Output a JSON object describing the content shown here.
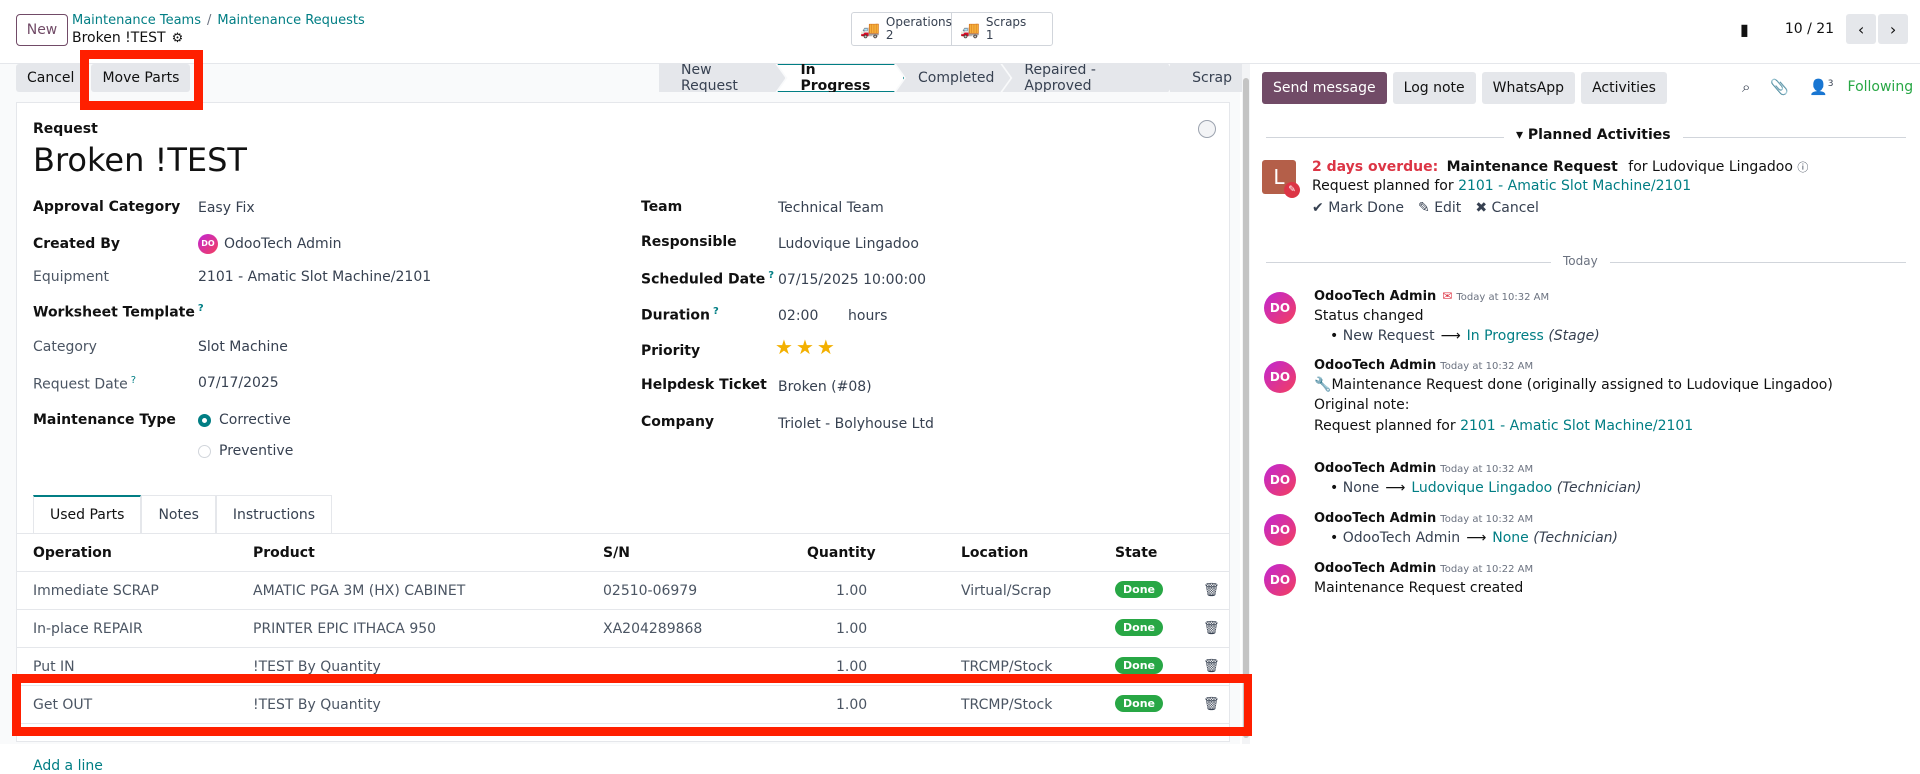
{
  "control": {
    "new_label": "New",
    "breadcrumb": [
      "Maintenance Teams",
      "Maintenance Requests"
    ],
    "record_name": "Broken !TEST",
    "smart_buttons": [
      {
        "label": "Operations",
        "count": "2",
        "icon": "truck-icon"
      },
      {
        "label": "Scraps",
        "count": "1",
        "icon": "truck-icon"
      }
    ],
    "pager": "10 / 21"
  },
  "actions": {
    "cancel": "Cancel",
    "move_parts": "Move Parts"
  },
  "stages": [
    "New Request",
    "In Progress",
    "Completed",
    "Repaired - Approved",
    "Scrap"
  ],
  "active_stage": "In Progress",
  "form": {
    "request_label": "Request",
    "title": "Broken !TEST",
    "left": {
      "approval_category": {
        "label": "Approval Category",
        "value": "Easy Fix"
      },
      "created_by": {
        "label": "Created By",
        "value": "OdooTech Admin"
      },
      "equipment": {
        "label": "Equipment",
        "value": "2101 - Amatic Slot Machine/2101"
      },
      "worksheet_template": {
        "label": "Worksheet Template",
        "help": "?"
      },
      "category": {
        "label": "Category",
        "value": "Slot Machine"
      },
      "request_date": {
        "label": "Request Date",
        "help": "?",
        "value": "07/17/2025"
      },
      "maintenance_type": {
        "label": "Maintenance Type",
        "options": [
          "Corrective",
          "Preventive"
        ],
        "selected": "Corrective"
      }
    },
    "right": {
      "team": {
        "label": "Team",
        "value": "Technical Team"
      },
      "responsible": {
        "label": "Responsible",
        "value": "Ludovique Lingadoo"
      },
      "scheduled_date": {
        "label": "Scheduled Date",
        "help": "?",
        "value": "07/15/2025 10:00:00"
      },
      "duration": {
        "label": "Duration",
        "help": "?",
        "value": "02:00",
        "unit": "hours"
      },
      "priority": {
        "label": "Priority",
        "stars": 3
      },
      "helpdesk_ticket": {
        "label": "Helpdesk Ticket",
        "value": "Broken (#08)"
      },
      "company": {
        "label": "Company",
        "value": "Triolet - Bolyhouse Ltd"
      }
    }
  },
  "tabs": [
    "Used Parts",
    "Notes",
    "Instructions"
  ],
  "table": {
    "headers": [
      "Operation",
      "Product",
      "S/N",
      "Quantity",
      "Location",
      "State"
    ],
    "rows": [
      {
        "operation": "Immediate SCRAP",
        "product": "AMATIC PGA 3M (HX) CABINET",
        "sn": "02510-06979",
        "qty": "1.00",
        "location": "Virtual/Scrap",
        "state": "Done"
      },
      {
        "operation": "In-place REPAIR",
        "product": "PRINTER EPIC ITHACA 950",
        "sn": "XA204289868",
        "qty": "1.00",
        "location": "",
        "state": "Done"
      },
      {
        "operation": "Put IN",
        "product": "!TEST By Quantity",
        "sn": "",
        "qty": "1.00",
        "location": "TRCMP/Stock",
        "state": "Done"
      },
      {
        "operation": "Get OUT",
        "product": "!TEST By Quantity",
        "sn": "",
        "qty": "1.00",
        "location": "TRCMP/Stock",
        "state": "Done"
      }
    ],
    "add_line": "Add a line"
  },
  "chatter": {
    "buttons": [
      "Send message",
      "Log note",
      "WhatsApp",
      "Activities"
    ],
    "followers_count": "3",
    "following": "Following",
    "planned_title": "Planned Activities",
    "activity": {
      "avatar_letter": "L",
      "overdue": "2 days overdue:",
      "type": "Maintenance Request",
      "for_text": "for Ludovique Lingadoo",
      "summary_prefix": "Request planned for",
      "summary_link": "2101 - Amatic Slot Machine/2101",
      "mark_done": "Mark Done",
      "edit": "Edit",
      "cancel": "Cancel"
    },
    "today": "Today",
    "messages": [
      {
        "author": "OdooTech Admin",
        "time": "Today at 10:32 AM",
        "line1": "Status changed",
        "from": "New Request",
        "to": "In Progress",
        "field": "(Stage)"
      },
      {
        "author": "OdooTech Admin",
        "time": "Today at 10:32 AM",
        "line1": "Maintenance Request done (originally assigned to Ludovique Lingadoo)",
        "line2": "Original note:",
        "line3_prefix": "Request planned for",
        "line3_link": "2101 - Amatic Slot Machine/2101"
      },
      {
        "author": "OdooTech Admin",
        "time": "Today at 10:32 AM",
        "from": "None",
        "to": "Ludovique Lingadoo",
        "field": "(Technician)"
      },
      {
        "author": "OdooTech Admin",
        "time": "Today at 10:32 AM",
        "from": "OdooTech Admin",
        "to": "None",
        "field": "(Technician)"
      },
      {
        "author": "OdooTech Admin",
        "time": "Today at 10:22 AM",
        "line1": "Maintenance Request created"
      }
    ]
  }
}
